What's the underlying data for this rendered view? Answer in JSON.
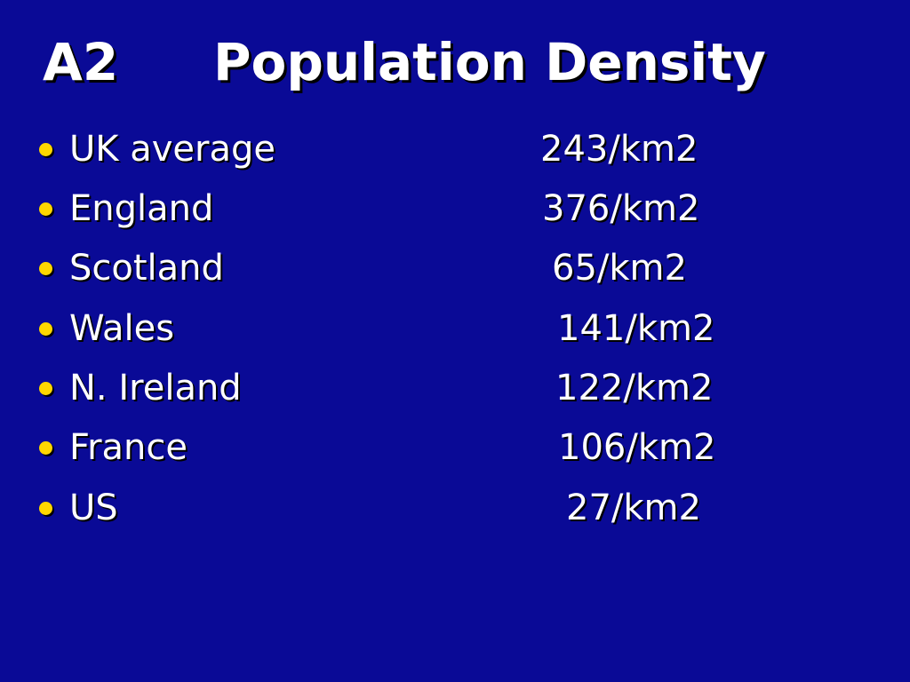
{
  "slide": {
    "title_code": "A2",
    "title_text": "Population Density",
    "bullet_color": "#ffd700",
    "background_color": "#0a0a96",
    "items": [
      {
        "label": "UK average",
        "value": "243/km2"
      },
      {
        "label": "England",
        "value": "376/km2"
      },
      {
        "label": "Scotland",
        "value": "65/km2"
      },
      {
        "label": "Wales",
        "value": "141/km2"
      },
      {
        "label": "N. Ireland",
        "value": "122/km2"
      },
      {
        "label": "France",
        "value": "106/km2"
      },
      {
        "label": "US",
        "value": "27/km2"
      }
    ]
  }
}
